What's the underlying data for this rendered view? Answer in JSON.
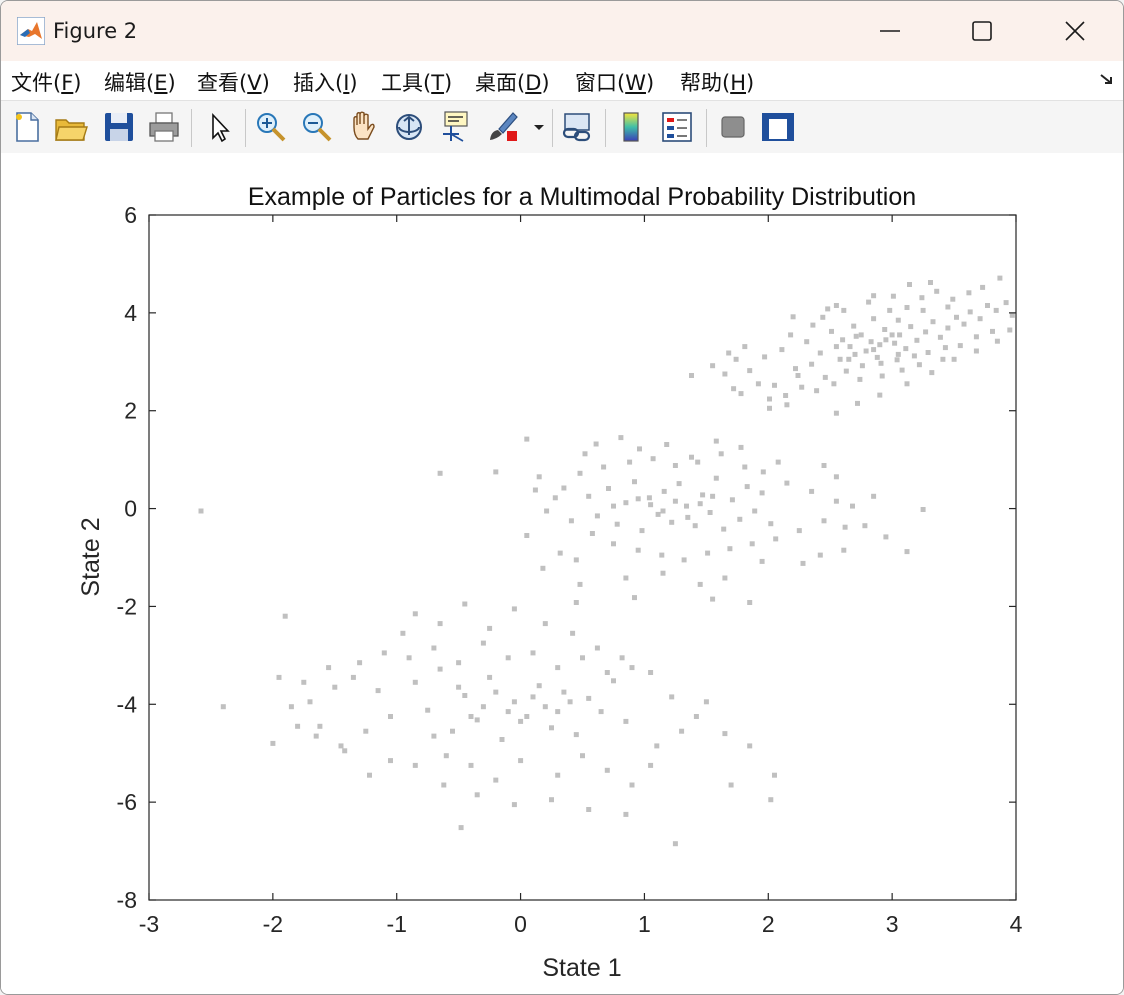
{
  "window": {
    "title": "Figure 2",
    "controls": {
      "minimize": "minimize-icon",
      "maximize": "maximize-icon",
      "close": "close-icon"
    }
  },
  "menu": [
    {
      "label": "文件",
      "accel": "F"
    },
    {
      "label": "编辑",
      "accel": "E"
    },
    {
      "label": "查看",
      "accel": "V"
    },
    {
      "label": "插入",
      "accel": "I"
    },
    {
      "label": "工具",
      "accel": "T"
    },
    {
      "label": "桌面",
      "accel": "D"
    },
    {
      "label": "窗口",
      "accel": "W"
    },
    {
      "label": "帮助",
      "accel": "H"
    }
  ],
  "toolbar": [
    "new-figure-icon",
    "open-file-icon",
    "save-icon",
    "print-icon",
    "edit-plot-arrow-icon",
    "zoom-in-icon",
    "zoom-out-icon",
    "pan-hand-icon",
    "rotate-3d-icon",
    "data-cursor-icon",
    "brush-icon",
    "dropdown-arrow-icon",
    "link-plot-icon",
    "insert-colorbar-icon",
    "insert-legend-icon",
    "hide-plot-tools-icon",
    "show-plot-tools-icon"
  ],
  "colors": {
    "marker": "#c0c0c0",
    "axes": "#262626",
    "titlebar": "#fbf1ec"
  },
  "chart_data": {
    "type": "scatter",
    "title": "Example of Particles for a Multimodal Probability Distribution",
    "xlabel": "State 1",
    "ylabel": "State 2",
    "xlim": [
      -3,
      4
    ],
    "ylim": [
      -8,
      6
    ],
    "xticks": [
      -3,
      -2,
      -1,
      0,
      1,
      2,
      3,
      4
    ],
    "yticks": [
      -8,
      -6,
      -4,
      -2,
      0,
      2,
      4,
      6
    ],
    "box": true,
    "grid": false,
    "marker": "square",
    "clusters": [
      {
        "center": [
          2.8,
          3.3
        ],
        "extent": "approx. x 1.7–4.0, y 1.9–4.7"
      },
      {
        "center": [
          1.3,
          0.0
        ],
        "extent": "approx. x 0.0–2.9, y -1.9–1.4"
      },
      {
        "center": [
          0.0,
          -4.0
        ],
        "extent": "approx. x -2.0–2.1, y -6.9– -1.9"
      }
    ],
    "points": [
      [
        2.35,
        2.95
      ],
      [
        2.42,
        3.18
      ],
      [
        2.58,
        3.05
      ],
      [
        2.66,
        3.31
      ],
      [
        2.71,
        3.52
      ],
      [
        2.79,
        3.22
      ],
      [
        2.83,
        3.41
      ],
      [
        2.88,
        3.09
      ],
      [
        2.94,
        3.66
      ],
      [
        3.02,
        3.38
      ],
      [
        3.06,
        3.55
      ],
      [
        3.11,
        3.27
      ],
      [
        3.15,
        3.72
      ],
      [
        3.2,
        3.44
      ],
      [
        3.27,
        3.61
      ],
      [
        3.33,
        3.82
      ],
      [
        3.39,
        3.5
      ],
      [
        3.45,
        3.69
      ],
      [
        3.52,
        3.91
      ],
      [
        3.58,
        3.77
      ],
      [
        3.63,
        4.02
      ],
      [
        3.71,
        3.88
      ],
      [
        3.77,
        4.15
      ],
      [
        3.84,
        4.05
      ],
      [
        3.92,
        4.21
      ],
      [
        3.97,
        3.95
      ],
      [
        2.24,
        2.72
      ],
      [
        2.31,
        3.41
      ],
      [
        2.46,
        2.68
      ],
      [
        2.51,
        3.62
      ],
      [
        2.63,
        2.81
      ],
      [
        2.69,
        3.73
      ],
      [
        2.76,
        2.92
      ],
      [
        2.85,
        3.88
      ],
      [
        2.91,
        2.97
      ],
      [
        2.98,
        4.05
      ],
      [
        3.04,
        3.04
      ],
      [
        3.12,
        4.11
      ],
      [
        3.18,
        3.12
      ],
      [
        3.24,
        4.31
      ],
      [
        3.29,
        3.19
      ],
      [
        3.36,
        4.44
      ],
      [
        3.43,
        3.29
      ],
      [
        3.49,
        4.28
      ],
      [
        3.55,
        3.33
      ],
      [
        3.62,
        4.41
      ],
      [
        3.68,
        3.51
      ],
      [
        3.73,
        4.52
      ],
      [
        3.81,
        3.62
      ],
      [
        3.87,
        4.71
      ],
      [
        2.05,
        2.52
      ],
      [
        2.11,
        3.25
      ],
      [
        2.14,
        2.31
      ],
      [
        2.18,
        3.55
      ],
      [
        2.22,
        2.86
      ],
      [
        2.27,
        2.48
      ],
      [
        2.36,
        3.75
      ],
      [
        2.39,
        2.41
      ],
      [
        2.44,
        3.91
      ],
      [
        2.53,
        2.55
      ],
      [
        2.61,
        4.05
      ],
      [
        2.74,
        2.64
      ],
      [
        2.81,
        4.22
      ],
      [
        2.92,
        2.71
      ],
      [
        3.01,
        4.34
      ],
      [
        3.08,
        2.83
      ],
      [
        3.14,
        4.58
      ],
      [
        3.22,
        2.94
      ],
      [
        3.31,
        4.62
      ],
      [
        3.41,
        3.05
      ],
      [
        2.55,
        3.31
      ],
      [
        2.65,
        3.05
      ],
      [
        2.75,
        3.55
      ],
      [
        2.85,
        3.25
      ],
      [
        2.95,
        3.45
      ],
      [
        3.05,
        3.15
      ],
      [
        2.6,
        3.45
      ],
      [
        2.7,
        3.15
      ],
      [
        2.9,
        3.35
      ],
      [
        3.0,
        3.55
      ],
      [
        1.78,
        2.35
      ],
      [
        1.85,
        2.82
      ],
      [
        1.92,
        2.55
      ],
      [
        1.97,
        3.1
      ],
      [
        2.01,
        2.24
      ],
      [
        1.74,
        3.05
      ],
      [
        1.81,
        3.31
      ],
      [
        2.2,
        3.92
      ],
      [
        2.48,
        4.08
      ],
      [
        1.65,
        2.75
      ],
      [
        1.38,
        2.72
      ],
      [
        1.55,
        2.92
      ],
      [
        1.68,
        3.18
      ],
      [
        1.72,
        2.45
      ],
      [
        2.01,
        2.05
      ],
      [
        2.15,
        2.12
      ],
      [
        2.55,
        1.95
      ],
      [
        2.72,
        2.15
      ],
      [
        2.9,
        2.32
      ],
      [
        3.12,
        2.55
      ],
      [
        3.32,
        2.78
      ],
      [
        3.5,
        3.05
      ],
      [
        3.68,
        3.22
      ],
      [
        3.85,
        3.42
      ],
      [
        3.95,
        3.65
      ],
      [
        3.45,
        4.12
      ],
      [
        3.25,
        4.05
      ],
      [
        3.05,
        3.85
      ],
      [
        2.85,
        4.35
      ],
      [
        2.55,
        4.15
      ],
      [
        0.55,
        0.25
      ],
      [
        0.62,
        -0.15
      ],
      [
        0.71,
        0.41
      ],
      [
        0.78,
        -0.32
      ],
      [
        0.85,
        0.12
      ],
      [
        0.92,
        0.55
      ],
      [
        0.98,
        -0.45
      ],
      [
        1.04,
        0.22
      ],
      [
        1.11,
        -0.12
      ],
      [
        1.16,
        0.35
      ],
      [
        1.22,
        -0.28
      ],
      [
        1.28,
        0.51
      ],
      [
        1.34,
        0.05
      ],
      [
        1.41,
        -0.35
      ],
      [
        1.47,
        0.28
      ],
      [
        1.53,
        -0.08
      ],
      [
        1.58,
        0.62
      ],
      [
        1.64,
        -0.42
      ],
      [
        1.71,
        0.18
      ],
      [
        1.77,
        -0.22
      ],
      [
        1.83,
        0.45
      ],
      [
        1.89,
        -0.05
      ],
      [
        1.95,
        0.32
      ],
      [
        2.02,
        -0.31
      ],
      [
        0.35,
        0.42
      ],
      [
        0.41,
        -0.25
      ],
      [
        0.48,
        0.72
      ],
      [
        0.58,
        -0.51
      ],
      [
        0.67,
        0.85
      ],
      [
        0.75,
        -0.72
      ],
      [
        0.88,
        0.95
      ],
      [
        0.95,
        -0.85
      ],
      [
        1.07,
        1.02
      ],
      [
        1.14,
        -0.95
      ],
      [
        1.25,
        0.88
      ],
      [
        1.32,
        -1.05
      ],
      [
        1.43,
        0.95
      ],
      [
        1.51,
        -0.91
      ],
      [
        1.62,
        1.12
      ],
      [
        1.69,
        -0.82
      ],
      [
        1.81,
        0.85
      ],
      [
        1.87,
        -0.72
      ],
      [
        1.96,
        0.75
      ],
      [
        2.06,
        -0.62
      ],
      [
        2.15,
        0.52
      ],
      [
        2.25,
        -0.45
      ],
      [
        2.35,
        0.35
      ],
      [
        2.45,
        -0.25
      ],
      [
        2.55,
        0.15
      ],
      [
        2.62,
        -0.38
      ],
      [
        0.15,
        0.65
      ],
      [
        0.21,
        -0.05
      ],
      [
        0.28,
        0.22
      ],
      [
        0.12,
        0.38
      ],
      [
        0.05,
        1.42
      ],
      [
        0.32,
        -0.91
      ],
      [
        0.45,
        -1.05
      ],
      [
        0.52,
        1.12
      ],
      [
        0.61,
        1.32
      ],
      [
        0.81,
        1.45
      ],
      [
        0.96,
        1.22
      ],
      [
        1.18,
        1.31
      ],
      [
        1.38,
        1.05
      ],
      [
        1.58,
        1.38
      ],
      [
        1.78,
        1.25
      ],
      [
        2.08,
        0.95
      ],
      [
        2.45,
        0.88
      ],
      [
        2.28,
        -1.12
      ],
      [
        1.95,
        -1.08
      ],
      [
        1.65,
        -1.42
      ],
      [
        1.45,
        -1.55
      ],
      [
        1.15,
        -1.32
      ],
      [
        0.85,
        -1.42
      ],
      [
        0.48,
        -1.55
      ],
      [
        0.18,
        -1.22
      ],
      [
        0.05,
        -0.55
      ],
      [
        2.68,
        0.05
      ],
      [
        2.78,
        -0.35
      ],
      [
        2.85,
        0.25
      ],
      [
        2.95,
        -0.58
      ],
      [
        2.61,
        -0.85
      ],
      [
        2.55,
        0.65
      ],
      [
        2.42,
        -0.95
      ],
      [
        3.12,
        -0.88
      ],
      [
        3.25,
        -0.02
      ],
      [
        0.92,
        -1.82
      ],
      [
        1.55,
        -1.85
      ],
      [
        1.85,
        -1.92
      ],
      [
        0.45,
        -1.92
      ],
      [
        -0.65,
        0.72
      ],
      [
        -0.2,
        0.75
      ],
      [
        -2.58,
        -0.05
      ],
      [
        1.05,
        0.08
      ],
      [
        1.25,
        0.15
      ],
      [
        1.35,
        -0.18
      ],
      [
        1.15,
        -0.05
      ],
      [
        0.95,
        0.2
      ],
      [
        1.45,
        0.1
      ],
      [
        1.55,
        0.25
      ],
      [
        0.75,
        0.05
      ],
      [
        -0.85,
        -3.55
      ],
      [
        -0.75,
        -4.12
      ],
      [
        -0.65,
        -3.28
      ],
      [
        -0.55,
        -4.55
      ],
      [
        -0.45,
        -3.82
      ],
      [
        -0.35,
        -4.32
      ],
      [
        -0.25,
        -3.45
      ],
      [
        -0.15,
        -4.72
      ],
      [
        -0.05,
        -3.95
      ],
      [
        0.05,
        -4.25
      ],
      [
        0.15,
        -3.62
      ],
      [
        0.25,
        -4.48
      ],
      [
        0.35,
        -3.75
      ],
      [
        0.45,
        -4.62
      ],
      [
        0.55,
        -3.88
      ],
      [
        0.65,
        -4.15
      ],
      [
        0.75,
        -3.52
      ],
      [
        0.85,
        -4.35
      ],
      [
        -1.05,
        -4.25
      ],
      [
        -1.15,
        -3.72
      ],
      [
        -1.25,
        -4.55
      ],
      [
        -1.35,
        -3.45
      ],
      [
        -1.45,
        -4.85
      ],
      [
        -1.55,
        -3.25
      ],
      [
        -1.65,
        -4.65
      ],
      [
        -1.75,
        -3.55
      ],
      [
        -1.85,
        -4.05
      ],
      [
        -1.95,
        -3.45
      ],
      [
        -2.0,
        -4.8
      ],
      [
        -1.9,
        -2.2
      ],
      [
        -0.95,
        -2.55
      ],
      [
        -0.85,
        -2.15
      ],
      [
        -0.65,
        -2.35
      ],
      [
        -0.45,
        -1.95
      ],
      [
        -0.25,
        -2.45
      ],
      [
        -0.05,
        -2.05
      ],
      [
        0.2,
        -2.35
      ],
      [
        0.42,
        -2.55
      ],
      [
        0.62,
        -2.85
      ],
      [
        0.82,
        -3.05
      ],
      [
        1.05,
        -3.35
      ],
      [
        1.22,
        -3.85
      ],
      [
        1.42,
        -4.25
      ],
      [
        1.65,
        -4.6
      ],
      [
        1.85,
        -4.85
      ],
      [
        2.05,
        -5.45
      ],
      [
        2.02,
        -5.95
      ],
      [
        1.25,
        -6.85
      ],
      [
        0.85,
        -6.25
      ],
      [
        0.55,
        -6.15
      ],
      [
        0.25,
        -5.95
      ],
      [
        -0.05,
        -6.05
      ],
      [
        -0.35,
        -5.85
      ],
      [
        -0.48,
        -6.52
      ],
      [
        -0.62,
        -5.65
      ],
      [
        -0.85,
        -5.25
      ],
      [
        -1.05,
        -5.15
      ],
      [
        -1.22,
        -5.45
      ],
      [
        -1.42,
        -4.95
      ],
      [
        -1.62,
        -4.45
      ],
      [
        -0.7,
        -4.65
      ],
      [
        -0.6,
        -5.05
      ],
      [
        -0.4,
        -5.25
      ],
      [
        -0.2,
        -5.55
      ],
      [
        0.0,
        -5.15
      ],
      [
        0.3,
        -5.45
      ],
      [
        0.5,
        -5.05
      ],
      [
        0.7,
        -5.35
      ],
      [
        0.9,
        -5.65
      ],
      [
        1.05,
        -5.25
      ],
      [
        -0.9,
        -3.05
      ],
      [
        -0.7,
        -2.85
      ],
      [
        -0.5,
        -3.15
      ],
      [
        -0.3,
        -2.75
      ],
      [
        -0.1,
        -3.05
      ],
      [
        0.1,
        -2.95
      ],
      [
        0.3,
        -3.25
      ],
      [
        0.5,
        -3.05
      ],
      [
        0.7,
        -3.35
      ],
      [
        0.9,
        -3.25
      ],
      [
        -1.1,
        -2.95
      ],
      [
        -1.3,
        -3.15
      ],
      [
        -1.5,
        -3.65
      ],
      [
        -1.7,
        -3.95
      ],
      [
        -2.4,
        -4.05
      ],
      [
        -1.8,
        -4.45
      ],
      [
        1.1,
        -4.85
      ],
      [
        1.3,
        -4.55
      ],
      [
        1.5,
        -3.95
      ],
      [
        1.7,
        -5.65
      ],
      [
        -0.3,
        -4.05
      ],
      [
        -0.1,
        -4.15
      ],
      [
        0.1,
        -3.85
      ],
      [
        -0.2,
        -3.75
      ],
      [
        0.0,
        -4.35
      ],
      [
        0.2,
        -4.05
      ],
      [
        -0.4,
        -4.25
      ],
      [
        0.3,
        -4.15
      ],
      [
        -0.5,
        -3.65
      ],
      [
        0.4,
        -3.95
      ]
    ]
  }
}
